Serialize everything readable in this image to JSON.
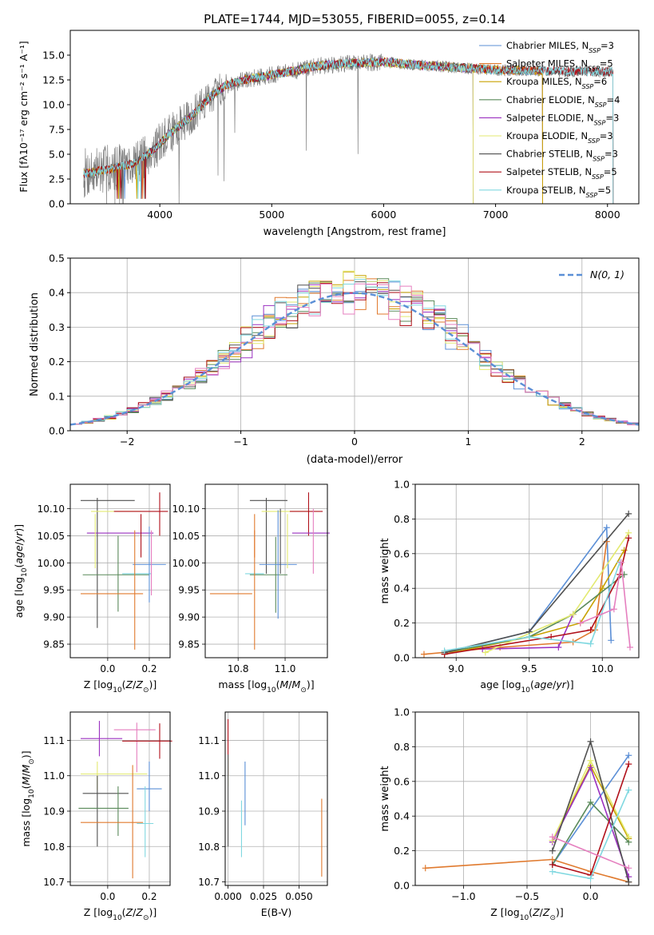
{
  "figure_title": "PLATE=1744, MJD=53055, FIBERID=0055, z=0.14",
  "colors": {
    "chabrier_miles": "#5b8fd6",
    "salpeter_miles": "#e07a2e",
    "kroupa_miles": "#c8a200",
    "chabrier_elodie": "#5a8a5a",
    "salpeter_elodie": "#9b30c0",
    "kroupa_elodie": "#e3ea70",
    "chabrier_stelib": "#505050",
    "salpeter_stelib": "#b0101a",
    "kroupa_stelib": "#80d8e0",
    "pink": "#e57fbf",
    "data": "#808080"
  },
  "chart_data": [
    {
      "type": "line",
      "name": "spectrum",
      "xlabel": "wavelength [Angstrom, rest frame]",
      "ylabel": "Flux [fλ10⁻¹⁷ erg cm⁻² s⁻¹ A⁻¹]",
      "xlim": [
        3200,
        8280
      ],
      "ylim": [
        0,
        17.5
      ],
      "xticks": [
        4000,
        5000,
        6000,
        7000,
        8000
      ],
      "yticks": [
        0.0,
        2.5,
        5.0,
        7.5,
        10.0,
        12.5,
        15.0
      ],
      "xtick_labels": [
        "4000",
        "5000",
        "6000",
        "7000",
        "8000"
      ],
      "ytick_labels": [
        "0.0",
        "2.5",
        "5.0",
        "7.5",
        "10.0",
        "12.5",
        "15.0"
      ],
      "grid": false,
      "legend_position": "top-right",
      "continuum": {
        "x": [
          3300,
          3450,
          3600,
          3800,
          3950,
          4100,
          4300,
          4450,
          4600,
          4800,
          5000,
          5200,
          5400,
          5700,
          6000,
          6300,
          6600,
          7000,
          7400,
          8000
        ],
        "y": [
          3.0,
          3.3,
          3.6,
          4.2,
          5.5,
          7.2,
          9.0,
          10.8,
          12.0,
          12.6,
          13.0,
          13.4,
          13.9,
          14.2,
          14.3,
          14.0,
          13.8,
          13.5,
          13.4,
          13.3
        ]
      },
      "series": [
        {
          "name": "Chabrier MILES, N_SSP=3",
          "color_key": "chabrier_miles",
          "xmin": 3320,
          "xmax": 7420
        },
        {
          "name": "Salpeter MILES, N_SSP=5",
          "color_key": "salpeter_miles",
          "xmin": 3320,
          "xmax": 7420
        },
        {
          "name": "Kroupa MILES, N_SSP=6",
          "color_key": "kroupa_miles",
          "xmin": 3320,
          "xmax": 7420
        },
        {
          "name": "Chabrier ELODIE, N_SSP=4",
          "color_key": "chabrier_elodie",
          "xmin": 3900,
          "xmax": 6800
        },
        {
          "name": "Salpeter ELODIE, N_SSP=3",
          "color_key": "salpeter_elodie",
          "xmin": 3900,
          "xmax": 6800
        },
        {
          "name": "Kroupa ELODIE, N_SSP=3",
          "color_key": "kroupa_elodie",
          "xmin": 3900,
          "xmax": 6800
        },
        {
          "name": "Chabrier STELIB, N_SSP=3",
          "color_key": "chabrier_stelib",
          "xmin": 3320,
          "xmax": 8050
        },
        {
          "name": "Salpeter STELIB, N_SSP=5",
          "color_key": "salpeter_stelib",
          "xmin": 3320,
          "xmax": 8050
        },
        {
          "name": "Kroupa STELIB, N_SSP=5",
          "color_key": "kroupa_stelib",
          "xmin": 3320,
          "xmax": 8050
        }
      ],
      "legend_entries": [
        {
          "prefix": "Chabrier MILES, N",
          "sub": "SSP",
          "suffix": "=3",
          "color_key": "chabrier_miles"
        },
        {
          "prefix": "Salpeter MILES, N",
          "sub": "SSP",
          "suffix": "=5",
          "color_key": "salpeter_miles"
        },
        {
          "prefix": "Kroupa MILES, N",
          "sub": "SSP",
          "suffix": "=6",
          "color_key": "kroupa_miles"
        },
        {
          "prefix": "Chabrier ELODIE, N",
          "sub": "SSP",
          "suffix": "=4",
          "color_key": "chabrier_elodie"
        },
        {
          "prefix": "Salpeter ELODIE, N",
          "sub": "SSP",
          "suffix": "=3",
          "color_key": "salpeter_elodie"
        },
        {
          "prefix": "Kroupa ELODIE, N",
          "sub": "SSP",
          "suffix": "=3",
          "color_key": "kroupa_elodie"
        },
        {
          "prefix": "Chabrier STELIB, N",
          "sub": "SSP",
          "suffix": "=3",
          "color_key": "chabrier_stelib"
        },
        {
          "prefix": "Salpeter STELIB, N",
          "sub": "SSP",
          "suffix": "=5",
          "color_key": "salpeter_stelib"
        },
        {
          "prefix": "Kroupa STELIB, N",
          "sub": "SSP",
          "suffix": "=5",
          "color_key": "kroupa_stelib"
        }
      ]
    },
    {
      "type": "line",
      "name": "residual_distribution",
      "xlabel": "(data-model)/error",
      "ylabel": "Normed distribution",
      "xlim": [
        -2.5,
        2.5
      ],
      "ylim": [
        0,
        0.5
      ],
      "xticks": [
        -2,
        -1,
        0,
        1,
        2
      ],
      "yticks": [
        0.0,
        0.1,
        0.2,
        0.3,
        0.4,
        0.5
      ],
      "xtick_labels": [
        "−2",
        "−1",
        "0",
        "1",
        "2"
      ],
      "ytick_labels": [
        "0.0",
        "0.1",
        "0.2",
        "0.3",
        "0.4",
        "0.5"
      ],
      "grid": true,
      "legend_position": "top-right",
      "reference_curve": {
        "label": "N(0, 1)",
        "color": "#5b8fd6",
        "style": "dashed"
      },
      "bin_width": 0.1
    },
    {
      "type": "scatter",
      "name": "age_vs_Z",
      "xlabel": "Z [log10(Z/Z⊙)]",
      "ylabel": "age  [log10(age/yr)]",
      "xlim": [
        -0.18,
        0.3
      ],
      "ylim": [
        9.825,
        10.145
      ],
      "xticks": [
        0.0,
        0.2
      ],
      "xtick_labels": [
        "0.0",
        "0.2"
      ],
      "yticks": [
        9.85,
        9.9,
        9.95,
        10.0,
        10.05,
        10.1
      ],
      "ytick_labels": [
        "9.85",
        "9.90",
        "9.95",
        "10.00",
        "10.05",
        "10.10"
      ],
      "grid": true
    },
    {
      "type": "scatter",
      "name": "age_vs_mass",
      "xlabel": "mass [log10(M/M⊙)]",
      "xlim": [
        10.66,
        11.18
      ],
      "ylim": [
        9.825,
        10.145
      ],
      "xticks": [
        10.8,
        11.0
      ],
      "xtick_labels": [
        "10.8",
        "11.0"
      ],
      "yticks": [
        9.85,
        9.9,
        9.95,
        10.0,
        10.05,
        10.1
      ],
      "ytick_labels": [
        "9.85",
        "9.90",
        "9.95",
        "10.00",
        "10.05",
        "10.10"
      ],
      "grid": true
    },
    {
      "type": "line",
      "name": "massweight_vs_age",
      "xlabel": "age  [log10(age/yr)]",
      "ylabel": "mass weight",
      "xlim": [
        8.72,
        10.25
      ],
      "ylim": [
        0,
        1.0
      ],
      "xticks": [
        9.0,
        9.5,
        10.0
      ],
      "xtick_labels": [
        "9.0",
        "9.5",
        "10.0"
      ],
      "yticks": [
        0.0,
        0.2,
        0.4,
        0.6,
        0.8,
        1.0
      ],
      "ytick_labels": [
        "0.0",
        "0.2",
        "0.4",
        "0.6",
        "0.8",
        "1.0"
      ],
      "grid": true,
      "series": [
        {
          "color_key": "chabrier_miles",
          "x": [
            8.92,
            9.5,
            10.03,
            10.06
          ],
          "y": [
            0.03,
            0.15,
            0.75,
            0.1
          ]
        },
        {
          "color_key": "salpeter_miles",
          "x": [
            8.78,
            9.3,
            9.8,
            9.95,
            10.03
          ],
          "y": [
            0.02,
            0.06,
            0.09,
            0.16,
            0.67
          ]
        },
        {
          "color_key": "kroupa_miles",
          "x": [
            8.92,
            9.5,
            9.85,
            10.0,
            10.15
          ],
          "y": [
            0.02,
            0.12,
            0.2,
            0.4,
            0.62
          ]
        },
        {
          "color_key": "chabrier_elodie",
          "x": [
            8.92,
            9.5,
            9.8,
            10.15
          ],
          "y": [
            0.03,
            0.12,
            0.25,
            0.48
          ]
        },
        {
          "color_key": "salpeter_elodie",
          "x": [
            9.18,
            9.7,
            9.8
          ],
          "y": [
            0.05,
            0.06,
            0.25
          ]
        },
        {
          "color_key": "kroupa_elodie",
          "x": [
            9.2,
            9.8,
            10.18
          ],
          "y": [
            0.03,
            0.25,
            0.72
          ]
        },
        {
          "color_key": "chabrier_stelib",
          "x": [
            8.92,
            9.5,
            10.18
          ],
          "y": [
            0.03,
            0.15,
            0.83
          ]
        },
        {
          "color_key": "salpeter_stelib",
          "x": [
            8.92,
            9.65,
            9.92,
            10.12,
            10.18
          ],
          "y": [
            0.02,
            0.12,
            0.16,
            0.48,
            0.69
          ]
        },
        {
          "color_key": "kroupa_stelib",
          "x": [
            8.92,
            9.5,
            9.92,
            10.12
          ],
          "y": [
            0.04,
            0.12,
            0.08,
            0.55
          ]
        },
        {
          "color_key": "pink",
          "x": [
            9.85,
            10.08,
            10.13,
            10.19
          ],
          "y": [
            0.2,
            0.28,
            0.55,
            0.06
          ]
        }
      ]
    },
    {
      "type": "scatter",
      "name": "mass_vs_Z",
      "xlabel": "Z [log10(Z/Z⊙)]",
      "ylabel": "mass [log10(M/M⊙)]",
      "xlim": [
        -0.18,
        0.3
      ],
      "ylim": [
        10.69,
        11.18
      ],
      "xticks": [
        0.0,
        0.2
      ],
      "xtick_labels": [
        "0.0",
        "0.2"
      ],
      "yticks": [
        10.7,
        10.8,
        10.9,
        11.0,
        11.1
      ],
      "ytick_labels": [
        "10.7",
        "10.8",
        "10.9",
        "11.0",
        "11.1"
      ],
      "grid": true
    },
    {
      "type": "scatter",
      "name": "mass_vs_ebv",
      "xlabel": "E(B-V)",
      "xlim": [
        -0.002,
        0.07
      ],
      "ylim": [
        10.69,
        11.18
      ],
      "xticks": [
        0.0,
        0.025,
        0.05
      ],
      "xtick_labels": [
        "0.000",
        "0.025",
        "0.050"
      ],
      "yticks": [
        10.7,
        10.8,
        10.9,
        11.0,
        11.1
      ],
      "ytick_labels": [
        "10.7",
        "10.8",
        "10.9",
        "11.0",
        "11.1"
      ],
      "grid": true
    },
    {
      "type": "line",
      "name": "massweight_vs_Z",
      "xlabel": "Z [log10(Z/Z⊙)]",
      "ylabel": "mass weight",
      "xlim": [
        -1.38,
        0.38
      ],
      "ylim": [
        0,
        1.0
      ],
      "xticks": [
        -1.0,
        -0.5,
        0.0
      ],
      "xtick_labels": [
        "−1.0",
        "−0.5",
        "0.0"
      ],
      "yticks": [
        0.0,
        0.2,
        0.4,
        0.6,
        0.8,
        1.0
      ],
      "ytick_labels": [
        "0.0",
        "0.2",
        "0.4",
        "0.6",
        "0.8",
        "1.0"
      ],
      "grid": true,
      "series": [
        {
          "color_key": "salpeter_miles",
          "x": [
            -1.3,
            -0.3,
            0.0,
            0.3
          ],
          "y": [
            0.1,
            0.15,
            0.08,
            0.02
          ]
        },
        {
          "color_key": "chabrier_miles",
          "x": [
            -0.3,
            0.3
          ],
          "y": [
            0.12,
            0.75
          ]
        },
        {
          "color_key": "kroupa_miles",
          "x": [
            -0.3,
            0.0,
            0.3
          ],
          "y": [
            0.26,
            0.69,
            0.27
          ]
        },
        {
          "color_key": "chabrier_elodie",
          "x": [
            -0.3,
            0.0,
            0.3
          ],
          "y": [
            0.12,
            0.48,
            0.25
          ]
        },
        {
          "color_key": "salpeter_elodie",
          "x": [
            -0.3,
            0.0,
            0.3
          ],
          "y": [
            0.25,
            0.68,
            0.05
          ]
        },
        {
          "color_key": "kroupa_elodie",
          "x": [
            -0.3,
            0.0,
            0.3
          ],
          "y": [
            0.26,
            0.72,
            0.28
          ]
        },
        {
          "color_key": "chabrier_stelib",
          "x": [
            -0.3,
            0.0,
            0.3
          ],
          "y": [
            0.2,
            0.83,
            0.02
          ]
        },
        {
          "color_key": "salpeter_stelib",
          "x": [
            -0.3,
            0.0,
            0.3
          ],
          "y": [
            0.12,
            0.06,
            0.7
          ]
        },
        {
          "color_key": "kroupa_stelib",
          "x": [
            -0.3,
            0.0,
            0.3
          ],
          "y": [
            0.08,
            0.04,
            0.55
          ]
        },
        {
          "color_key": "pink",
          "x": [
            -0.3,
            0.3
          ],
          "y": [
            0.28,
            0.1
          ]
        }
      ]
    }
  ]
}
